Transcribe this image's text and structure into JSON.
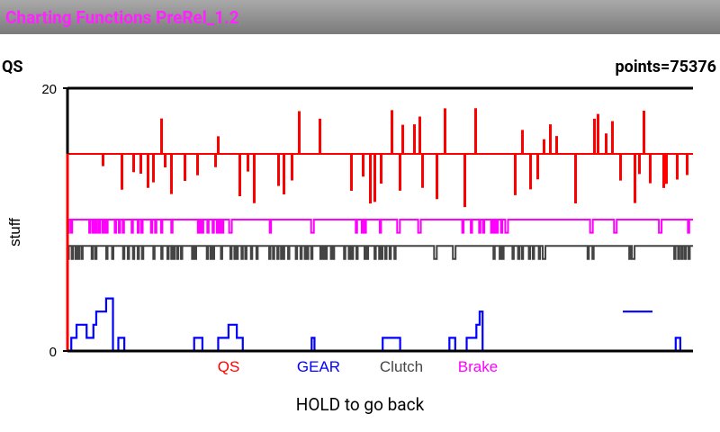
{
  "app": {
    "title": "Charting Functions PreRel_1.2"
  },
  "header": {
    "left_label": "QS",
    "right_label": "points=75376"
  },
  "footer": {
    "hint": "HOLD to go back"
  },
  "chart_data": {
    "type": "line",
    "ylabel": "stuff",
    "ylim": [
      0,
      20
    ],
    "yticks": [
      "0",
      "20"
    ],
    "x_points": 75376,
    "series": [
      {
        "name": "QS",
        "color": "#ff0000",
        "baseline": 15,
        "low": 11,
        "high": 19
      },
      {
        "name": "GEAR",
        "color": "#0000ff",
        "baseline": 0,
        "low": 0,
        "high": 5
      },
      {
        "name": "Clutch",
        "color": "#444444",
        "baseline": 7,
        "low": 7,
        "high": 8
      },
      {
        "name": "Brake",
        "color": "#ff00ff",
        "baseline": 9,
        "low": 9,
        "high": 10
      }
    ]
  }
}
